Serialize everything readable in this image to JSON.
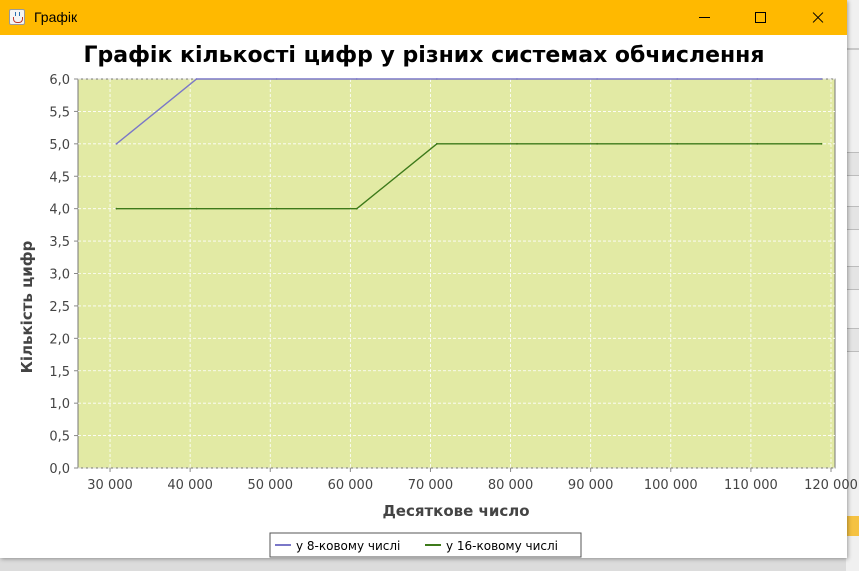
{
  "window": {
    "title": "Графік",
    "icon": "java-cup-icon",
    "controls": [
      "minimize-icon",
      "maximize-icon",
      "close-icon"
    ],
    "titlebar_color": "#ffb900"
  },
  "chart_data": {
    "type": "line",
    "title": "Графік кількості цифр у різних системах обчислення",
    "xlabel": "Десяткове число",
    "ylabel": "Кількість цифр",
    "xlim": [
      26000,
      120500
    ],
    "ylim": [
      0,
      6.0
    ],
    "x_ticks": [
      30000,
      40000,
      50000,
      60000,
      70000,
      80000,
      90000,
      100000,
      110000,
      120000
    ],
    "x_tick_labels": [
      "30 000",
      "40 000",
      "50 000",
      "60 000",
      "70 000",
      "80 000",
      "90 000",
      "100 000",
      "110 000",
      "120 000"
    ],
    "y_ticks": [
      0,
      0.5,
      1.0,
      1.5,
      2.0,
      2.5,
      3.0,
      3.5,
      4.0,
      4.5,
      5.0,
      5.5,
      6.0
    ],
    "y_tick_labels": [
      "0,0",
      "0,5",
      "1,0",
      "1,5",
      "2,0",
      "2,5",
      "3,0",
      "3,5",
      "4,0",
      "4,5",
      "5,0",
      "5,5",
      "6,0"
    ],
    "grid": true,
    "plot_background": "#e2eaa4",
    "legend_position": "bottom",
    "series": [
      {
        "name": "у 8-ковому числі",
        "color": "#7a77c8",
        "x": [
          30800,
          40800,
          50800,
          60800,
          70800,
          80800,
          90800,
          100800,
          110800,
          118800
        ],
        "y": [
          5,
          6,
          6,
          6,
          6,
          6,
          6,
          6,
          6,
          6
        ]
      },
      {
        "name": "у 16-ковому числі",
        "color": "#3d7a1a",
        "x": [
          30800,
          40800,
          50800,
          60800,
          70800,
          80800,
          90800,
          100800,
          110800,
          118800
        ],
        "y": [
          4,
          4,
          4,
          4,
          5,
          5,
          5,
          5,
          5,
          5
        ]
      }
    ]
  }
}
